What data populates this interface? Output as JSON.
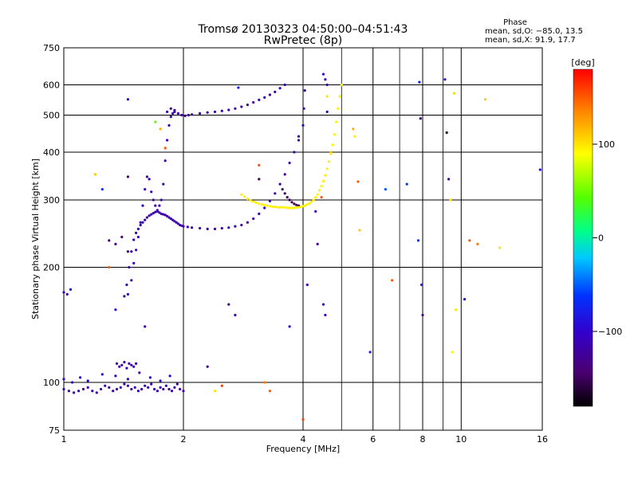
{
  "chart_data": {
    "type": "scatter",
    "title": "Tromsø 20130323 04:50:00–04:51:43",
    "subtitle": "RwPretec (8p)",
    "xlabel": "Frequency [MHz]",
    "ylabel": "Stationary phase Virtual Height [km]",
    "x_scale": "log",
    "y_scale": "log",
    "xlim": [
      1,
      16
    ],
    "ylim": [
      75,
      750
    ],
    "x_ticks": [
      1,
      2,
      4,
      6,
      8,
      10,
      16
    ],
    "x_tick_labels": [
      "1",
      "2",
      "4",
      "6",
      "8",
      "10",
      "16"
    ],
    "x_minor_ticks": [
      5,
      7,
      9
    ],
    "y_ticks": [
      75,
      100,
      200,
      300,
      400,
      500,
      600,
      750
    ],
    "y_tick_labels": [
      "75",
      "100",
      "200",
      "300",
      "400",
      "500",
      "600",
      "750"
    ],
    "grid": true,
    "phase_box": {
      "title": "Phase",
      "line1": "mean, sd,O: −85.0, 13.5",
      "line2": "mean, sd,X:  91.9, 17.7"
    },
    "colorbar": {
      "label": "[deg]",
      "range": [
        -180,
        180
      ],
      "ticks": [
        100,
        0,
        -100
      ],
      "tick_labels": [
        "100",
        "0",
        "−100"
      ]
    },
    "traces": [
      {
        "x": [
          1.0,
          1.03,
          1.06,
          1.09,
          1.12,
          1.15,
          1.18,
          1.21,
          1.24,
          1.27,
          1.3,
          1.33,
          1.36,
          1.39,
          1.42,
          1.45,
          1.48,
          1.51,
          1.54,
          1.57,
          1.6,
          1.63,
          1.66,
          1.69,
          1.72,
          1.75,
          1.78,
          1.81,
          1.84,
          1.87,
          1.9,
          1.93,
          1.96,
          2.0
        ],
        "y": [
          96,
          95,
          94,
          95,
          96,
          97,
          95,
          94,
          96,
          98,
          97,
          95,
          96,
          97,
          99,
          98,
          96,
          97,
          95,
          96,
          98,
          97,
          99,
          96,
          95,
          97,
          96,
          98,
          96,
          95,
          97,
          99,
          96,
          95
        ],
        "phase": -115
      },
      {
        "x": [
          1.0,
          1.05,
          1.1,
          1.15,
          1.25,
          1.35,
          1.45,
          1.55,
          1.65,
          1.75,
          1.85
        ],
        "y": [
          102,
          100,
          103,
          101,
          105,
          104,
          102,
          106,
          103,
          101,
          104
        ],
        "phase": -100
      },
      {
        "x": [
          1.0,
          1.02,
          1.04
        ],
        "y": [
          172,
          170,
          175
        ],
        "phase": -105
      },
      {
        "x": [
          1.36,
          1.38,
          1.4,
          1.42,
          1.44,
          1.46,
          1.48,
          1.5,
          1.52
        ],
        "y": [
          112,
          110,
          111,
          113,
          109,
          112,
          111,
          110,
          112
        ],
        "phase": -115
      },
      {
        "x": [
          1.42,
          1.44,
          1.46,
          1.48,
          1.5,
          1.52,
          1.54,
          1.56,
          1.58,
          1.6,
          1.62,
          1.64,
          1.66,
          1.68,
          1.7,
          1.72,
          1.74,
          1.76,
          1.78,
          1.8,
          1.82,
          1.84,
          1.86,
          1.88,
          1.9,
          1.92,
          1.94,
          1.96,
          1.98,
          2.0,
          2.05,
          2.1,
          2.2,
          2.3,
          2.4,
          2.5,
          2.6,
          2.7,
          2.8,
          2.9,
          3.0,
          3.1,
          3.2,
          3.3,
          3.4,
          3.5,
          3.6,
          3.7,
          3.8,
          3.9,
          4.0,
          4.02,
          4.04
        ],
        "y": [
          168,
          180,
          200,
          220,
          236,
          246,
          252,
          258,
          262,
          266,
          270,
          273,
          275,
          277,
          279,
          280,
          278,
          276,
          275,
          274,
          272,
          270,
          268,
          266,
          264,
          262,
          260,
          258,
          257,
          256,
          255,
          254,
          253,
          252,
          252,
          253,
          254,
          256,
          258,
          262,
          268,
          276,
          286,
          298,
          312,
          330,
          350,
          375,
          400,
          430,
          470,
          520,
          580
        ],
        "phase": -115
      },
      {
        "x": [
          1.45,
          1.48,
          1.5,
          1.52,
          1.54,
          1.56,
          1.58,
          1.6,
          1.62,
          1.64,
          1.66,
          1.68,
          1.7,
          1.72,
          1.74,
          1.76,
          1.78,
          1.8,
          1.82,
          1.84,
          1.86,
          1.88,
          1.9
        ],
        "y": [
          170,
          185,
          205,
          222,
          240,
          262,
          290,
          320,
          345,
          340,
          315,
          300,
          290,
          282,
          290,
          300,
          330,
          380,
          430,
          470,
          495,
          505,
          510
        ],
        "phase": -110
      },
      {
        "x": [
          1.82,
          1.86,
          1.9,
          1.94,
          1.98,
          2.02,
          2.06,
          2.1,
          2.2,
          2.3,
          2.4,
          2.5,
          2.6,
          2.7,
          2.8,
          2.9,
          3.0,
          3.1,
          3.2,
          3.3,
          3.4,
          3.5,
          3.6
        ],
        "y": [
          510,
          520,
          515,
          505,
          500,
          498,
          500,
          502,
          505,
          508,
          510,
          513,
          516,
          520,
          526,
          532,
          540,
          548,
          556,
          565,
          575,
          588,
          600
        ],
        "phase": -118
      },
      {
        "x": [
          3.55,
          3.6,
          3.65,
          3.7,
          3.75,
          3.8,
          3.85,
          3.9
        ],
        "y": [
          320,
          312,
          305,
          300,
          296,
          293,
          291,
          290
        ],
        "phase": -150
      },
      {
        "x": [
          2.8,
          2.85,
          2.9,
          2.95,
          3.0,
          3.05,
          3.1,
          3.15,
          3.2,
          3.25,
          3.3,
          3.35,
          3.4,
          3.45,
          3.5,
          3.55,
          3.6,
          3.65,
          3.7,
          3.75,
          3.8,
          3.85,
          3.9,
          3.95,
          4.0,
          4.05,
          4.1,
          4.15,
          4.2,
          4.25,
          4.3,
          4.35,
          4.4,
          4.45,
          4.5,
          4.55,
          4.6,
          4.65,
          4.7,
          4.75,
          4.8,
          4.85,
          4.9,
          4.95,
          5.0
        ],
        "y": [
          310,
          306,
          302,
          299,
          297,
          295,
          293,
          292,
          291,
          290,
          289,
          288,
          288,
          287,
          287,
          287,
          287,
          286,
          286,
          286,
          286,
          287,
          287,
          288,
          289,
          290,
          292,
          294,
          297,
          300,
          305,
          310,
          318,
          326,
          336,
          348,
          362,
          378,
          396,
          418,
          445,
          480,
          520,
          560,
          600
        ],
        "phase": 95
      },
      {
        "x": [
          1.35,
          1.4,
          1.45,
          1.3
        ],
        "y": [
          230,
          240,
          220,
          235
        ],
        "phase": -140
      },
      {
        "x": [
          4.5,
          4.55,
          4.6
        ],
        "y": [
          640,
          620,
          600
        ],
        "phase": -100
      },
      {
        "x": [
          4.5,
          4.55
        ],
        "y": [
          160,
          150
        ],
        "phase": -110
      }
    ],
    "scatter_points": [
      {
        "x": 1.2,
        "y": 350,
        "phase": 110
      },
      {
        "x": 1.25,
        "y": 320,
        "phase": -60
      },
      {
        "x": 1.3,
        "y": 200,
        "phase": 150
      },
      {
        "x": 1.35,
        "y": 155,
        "phase": -100
      },
      {
        "x": 1.45,
        "y": 345,
        "phase": -140
      },
      {
        "x": 1.45,
        "y": 550,
        "phase": -95
      },
      {
        "x": 1.6,
        "y": 140,
        "phase": -110
      },
      {
        "x": 1.7,
        "y": 480,
        "phase": 45
      },
      {
        "x": 1.75,
        "y": 460,
        "phase": 120
      },
      {
        "x": 1.8,
        "y": 410,
        "phase": 150
      },
      {
        "x": 2.3,
        "y": 110,
        "phase": -120
      },
      {
        "x": 2.4,
        "y": 95,
        "phase": 100
      },
      {
        "x": 2.5,
        "y": 98,
        "phase": 160
      },
      {
        "x": 2.6,
        "y": 160,
        "phase": -140
      },
      {
        "x": 2.7,
        "y": 150,
        "phase": -110
      },
      {
        "x": 2.75,
        "y": 590,
        "phase": -80
      },
      {
        "x": 3.1,
        "y": 370,
        "phase": 155
      },
      {
        "x": 3.1,
        "y": 340,
        "phase": -150
      },
      {
        "x": 3.2,
        "y": 100,
        "phase": 140
      },
      {
        "x": 3.3,
        "y": 95,
        "phase": 150
      },
      {
        "x": 3.7,
        "y": 140,
        "phase": -110
      },
      {
        "x": 3.9,
        "y": 440,
        "phase": -120
      },
      {
        "x": 4.0,
        "y": 80,
        "phase": 160
      },
      {
        "x": 4.1,
        "y": 180,
        "phase": -120
      },
      {
        "x": 4.3,
        "y": 280,
        "phase": -110
      },
      {
        "x": 4.35,
        "y": 230,
        "phase": -120
      },
      {
        "x": 4.45,
        "y": 305,
        "phase": 150
      },
      {
        "x": 4.6,
        "y": 560,
        "phase": 100
      },
      {
        "x": 4.6,
        "y": 510,
        "phase": -100
      },
      {
        "x": 4.7,
        "y": 400,
        "phase": 110
      },
      {
        "x": 5.35,
        "y": 460,
        "phase": 120
      },
      {
        "x": 5.4,
        "y": 440,
        "phase": 95
      },
      {
        "x": 5.5,
        "y": 335,
        "phase": 150
      },
      {
        "x": 5.55,
        "y": 250,
        "phase": 110
      },
      {
        "x": 5.9,
        "y": 120,
        "phase": -80
      },
      {
        "x": 6.45,
        "y": 320,
        "phase": -50
      },
      {
        "x": 6.7,
        "y": 185,
        "phase": 150
      },
      {
        "x": 7.3,
        "y": 330,
        "phase": -60
      },
      {
        "x": 7.8,
        "y": 235,
        "phase": -60
      },
      {
        "x": 7.85,
        "y": 610,
        "phase": -80
      },
      {
        "x": 7.9,
        "y": 490,
        "phase": -150
      },
      {
        "x": 7.95,
        "y": 180,
        "phase": -80
      },
      {
        "x": 8.0,
        "y": 150,
        "phase": -120
      },
      {
        "x": 9.1,
        "y": 620,
        "phase": -90
      },
      {
        "x": 9.2,
        "y": 450,
        "phase": -160
      },
      {
        "x": 9.3,
        "y": 340,
        "phase": -120
      },
      {
        "x": 9.4,
        "y": 300,
        "phase": 100
      },
      {
        "x": 9.5,
        "y": 120,
        "phase": 95
      },
      {
        "x": 9.6,
        "y": 570,
        "phase": 105
      },
      {
        "x": 9.7,
        "y": 155,
        "phase": 100
      },
      {
        "x": 10.2,
        "y": 165,
        "phase": -100
      },
      {
        "x": 10.5,
        "y": 235,
        "phase": 150
      },
      {
        "x": 11.0,
        "y": 230,
        "phase": 140
      },
      {
        "x": 11.5,
        "y": 550,
        "phase": 110
      },
      {
        "x": 12.5,
        "y": 225,
        "phase": 100
      },
      {
        "x": 15.8,
        "y": 360,
        "phase": -90
      }
    ]
  }
}
